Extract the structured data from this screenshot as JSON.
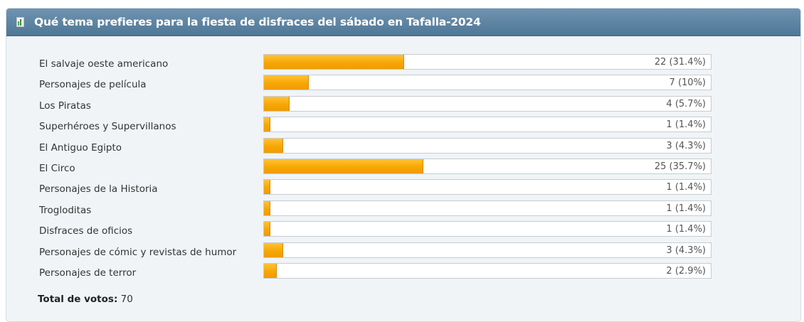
{
  "poll": {
    "title": "Qué tema prefieres para la fiesta de disfraces del sábado en Tafalla-2024",
    "options": [
      {
        "label": "El salvaje oeste americano",
        "votes": 22,
        "percent": 31.4,
        "result": "22 (31.4%)"
      },
      {
        "label": "Personajes de película",
        "votes": 7,
        "percent": 10,
        "result": "7 (10%)"
      },
      {
        "label": "Los Piratas",
        "votes": 4,
        "percent": 5.7,
        "result": "4 (5.7%)"
      },
      {
        "label": "Superhéroes y Supervillanos",
        "votes": 1,
        "percent": 1.4,
        "result": "1 (1.4%)"
      },
      {
        "label": "El Antiguo Egipto",
        "votes": 3,
        "percent": 4.3,
        "result": "3 (4.3%)"
      },
      {
        "label": "El Circo",
        "votes": 25,
        "percent": 35.7,
        "result": "25 (35.7%)"
      },
      {
        "label": "Personajes de la Historia",
        "votes": 1,
        "percent": 1.4,
        "result": "1 (1.4%)"
      },
      {
        "label": "Trogloditas",
        "votes": 1,
        "percent": 1.4,
        "result": "1 (1.4%)"
      },
      {
        "label": "Disfraces de oficios",
        "votes": 1,
        "percent": 1.4,
        "result": "1 (1.4%)"
      },
      {
        "label": "Personajes de cómic y revistas de humor",
        "votes": 3,
        "percent": 4.3,
        "result": "3 (4.3%)"
      },
      {
        "label": "Personajes de terror",
        "votes": 2,
        "percent": 2.9,
        "result": "2 (2.9%)"
      }
    ],
    "total_label": "Total de votos:",
    "total_value": "70"
  },
  "icons": {
    "header_icon": "poll-chart-icon"
  },
  "colors": {
    "header": "#5a81a0",
    "bar_fill": "#f7a704",
    "panel": "#f0f4f7"
  }
}
